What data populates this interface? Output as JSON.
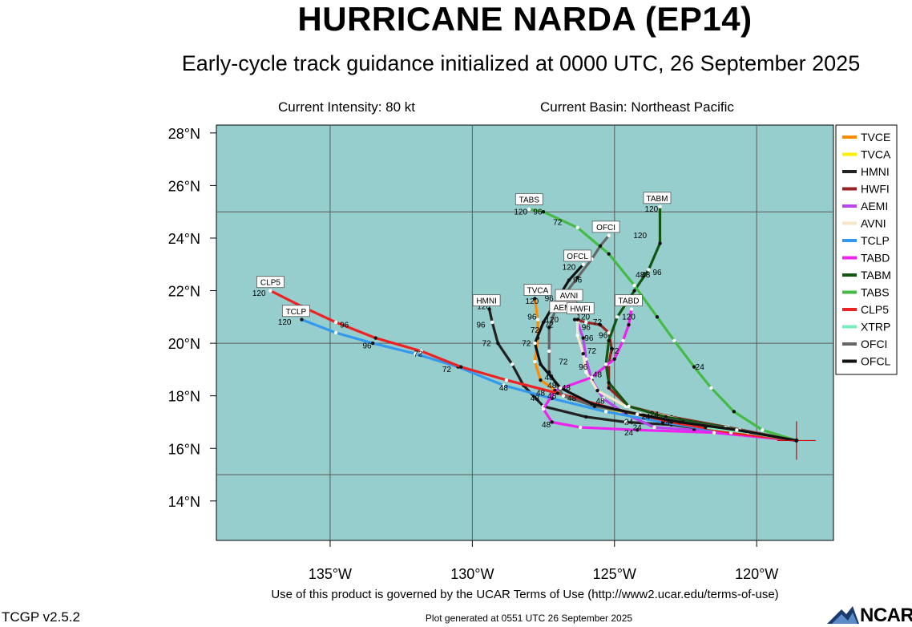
{
  "title": "HURRICANE NARDA (EP14)",
  "subtitle": "Early-cycle track guidance initialized at 0000 UTC, 26 September 2025",
  "current_intensity": "Current Intensity: 80 kt",
  "current_basin": "Current Basin: Northeast Pacific",
  "footer": {
    "terms": "Use of this product is governed by the UCAR Terms of Use (http://www2.ucar.edu/terms-of-use)",
    "version": "TCGP v2.5.2",
    "generated": "Plot generated at 0551 UTC   26 September 2025",
    "logo": "NCAR"
  },
  "colors": {
    "ocean": "#96CDCD",
    "grid": "#5a5a5a",
    "marker": "#cc0000"
  },
  "axes": {
    "lon_range": [
      -139,
      -117.3
    ],
    "lat_range": [
      12.5,
      28.3
    ],
    "lon_ticks": [
      {
        "value": -135,
        "label": "135°W"
      },
      {
        "value": -130,
        "label": "130°W"
      },
      {
        "value": -125,
        "label": "125°W"
      },
      {
        "value": -120,
        "label": "120°W"
      }
    ],
    "lat_ticks": [
      {
        "value": 14,
        "label": "14°N"
      },
      {
        "value": 16,
        "label": "16°N"
      },
      {
        "value": 18,
        "label": "18°N"
      },
      {
        "value": 20,
        "label": "20°N"
      },
      {
        "value": 22,
        "label": "22°N"
      },
      {
        "value": 24,
        "label": "24°N"
      },
      {
        "value": 26,
        "label": "26°N"
      },
      {
        "value": 28,
        "label": "28°N"
      }
    ],
    "grid_lons": [
      -135,
      -130,
      -125,
      -120
    ],
    "grid_lats": [
      15,
      20,
      25
    ]
  },
  "storm_position": [
    -118.6,
    16.3
  ],
  "chart_data": {
    "type": "line",
    "legend_position": "right",
    "series": [
      {
        "name": "TVCE",
        "color": "#FF8C00",
        "points": [
          [
            -118.6,
            16.3
          ],
          [
            -120.5,
            16.6
          ],
          [
            -122.5,
            17.0
          ],
          [
            -124.1,
            17.3
          ],
          [
            -125.5,
            17.6
          ],
          [
            -126.8,
            18.0
          ],
          [
            -127.6,
            18.6
          ],
          [
            -127.8,
            19.3
          ],
          [
            -127.7,
            20.2
          ],
          [
            -127.7,
            20.9
          ],
          [
            -127.8,
            21.7
          ]
        ]
      },
      {
        "name": "TVCA",
        "color": "#FFEE00",
        "points": [
          [
            -118.6,
            16.3
          ],
          [
            -120.6,
            16.6
          ],
          [
            -122.6,
            17.0
          ],
          [
            -124.3,
            17.3
          ],
          [
            -125.7,
            17.6
          ]
        ]
      },
      {
        "name": "HMNI",
        "color": "#222222",
        "points": [
          [
            -118.6,
            16.3
          ],
          [
            -121.0,
            16.6
          ],
          [
            -123.0,
            16.9
          ],
          [
            -124.6,
            17.0
          ],
          [
            -126.0,
            17.2
          ],
          [
            -127.5,
            17.6
          ],
          [
            -128.2,
            18.4
          ],
          [
            -128.6,
            19.2
          ],
          [
            -129.1,
            20.0
          ],
          [
            -129.3,
            20.8
          ],
          [
            -129.4,
            21.3
          ]
        ]
      },
      {
        "name": "HWFI",
        "color": "#992222",
        "points": [
          [
            -118.6,
            16.3
          ],
          [
            -121.0,
            16.8
          ],
          [
            -123.0,
            17.2
          ],
          [
            -124.5,
            17.6
          ],
          [
            -125.2,
            18.3
          ],
          [
            -125.2,
            19.2
          ],
          [
            -125.1,
            19.8
          ],
          [
            -125.2,
            20.4
          ],
          [
            -125.5,
            20.7
          ],
          [
            -126.0,
            20.8
          ],
          [
            -126.4,
            20.9
          ]
        ]
      },
      {
        "name": "AEMI",
        "color": "#BB44EE",
        "points": [
          [
            -118.6,
            16.3
          ],
          [
            -120.5,
            16.5
          ],
          [
            -122.2,
            16.7
          ],
          [
            -123.6,
            16.8
          ],
          [
            -124.6,
            17.3
          ],
          [
            -125.4,
            17.9
          ],
          [
            -125.8,
            18.6
          ],
          [
            -126.0,
            19.4
          ],
          [
            -126.1,
            20.2
          ],
          [
            -126.3,
            20.8
          ]
        ]
      },
      {
        "name": "AVNI",
        "color": "#F5E6C8",
        "points": [
          [
            -118.6,
            16.3
          ],
          [
            -120.7,
            16.7
          ],
          [
            -122.7,
            17.1
          ],
          [
            -124.6,
            17.6
          ],
          [
            -125.6,
            18.2
          ],
          [
            -126.0,
            18.9
          ],
          [
            -126.1,
            19.6
          ],
          [
            -126.3,
            20.3
          ],
          [
            -126.3,
            20.9
          ]
        ]
      },
      {
        "name": "TCLP",
        "color": "#3399EE",
        "points": [
          [
            -118.6,
            16.3
          ],
          [
            -121.0,
            16.6
          ],
          [
            -123.3,
            17.0
          ],
          [
            -125.3,
            17.4
          ],
          [
            -127.2,
            17.9
          ],
          [
            -128.9,
            18.4
          ],
          [
            -130.5,
            19.1
          ],
          [
            -132.0,
            19.6
          ],
          [
            -133.5,
            20.0
          ],
          [
            -134.8,
            20.4
          ],
          [
            -136.0,
            20.9
          ]
        ]
      },
      {
        "name": "TABD",
        "color": "#EE22EE",
        "points": [
          [
            -118.6,
            16.3
          ],
          [
            -121.5,
            16.6
          ],
          [
            -124.2,
            16.7
          ],
          [
            -126.2,
            16.8
          ],
          [
            -127.2,
            17.0
          ],
          [
            -127.5,
            17.5
          ],
          [
            -127.1,
            18.2
          ],
          [
            -125.8,
            18.7
          ],
          [
            -125.0,
            19.4
          ],
          [
            -124.7,
            20.1
          ],
          [
            -124.5,
            20.7
          ],
          [
            -124.4,
            21.3
          ]
        ]
      },
      {
        "name": "TABM",
        "color": "#115511",
        "points": [
          [
            -118.6,
            16.3
          ],
          [
            -121.1,
            16.8
          ],
          [
            -123.2,
            17.2
          ],
          [
            -124.5,
            17.6
          ],
          [
            -125.2,
            18.5
          ],
          [
            -125.3,
            19.2
          ],
          [
            -125.2,
            20.1
          ],
          [
            -124.9,
            21.0
          ],
          [
            -124.3,
            22.0
          ],
          [
            -123.8,
            22.8
          ],
          [
            -123.4,
            23.8
          ],
          [
            -123.4,
            25.2
          ]
        ]
      },
      {
        "name": "TABS",
        "color": "#44BB44",
        "points": [
          [
            -118.6,
            16.3
          ],
          [
            -119.8,
            16.7
          ],
          [
            -120.8,
            17.4
          ],
          [
            -121.6,
            18.3
          ],
          [
            -122.2,
            19.1
          ],
          [
            -122.9,
            20.1
          ],
          [
            -123.5,
            21.0
          ],
          [
            -124.3,
            22.2
          ],
          [
            -125.2,
            23.4
          ],
          [
            -126.3,
            24.4
          ],
          [
            -127.5,
            25.0
          ],
          [
            -128.0,
            25.1
          ]
        ]
      },
      {
        "name": "CLP5",
        "color": "#EE2222",
        "points": [
          [
            -118.6,
            16.3
          ],
          [
            -120.9,
            16.6
          ],
          [
            -123.0,
            17.0
          ],
          [
            -125.0,
            17.5
          ],
          [
            -127.0,
            18.1
          ],
          [
            -128.8,
            18.6
          ],
          [
            -130.4,
            19.1
          ],
          [
            -131.8,
            19.7
          ],
          [
            -133.4,
            20.2
          ],
          [
            -134.8,
            20.8
          ],
          [
            -136.0,
            21.4
          ],
          [
            -137.1,
            22.0
          ]
        ]
      },
      {
        "name": "XTRP",
        "color": "#77EEBB",
        "points": [
          [
            -118.6,
            16.3
          ],
          [
            -120.3,
            16.6
          ],
          [
            -121.8,
            16.8
          ]
        ]
      },
      {
        "name": "OFCI",
        "color": "#666666",
        "points": [
          [
            -118.6,
            16.3
          ],
          [
            -120.6,
            16.7
          ],
          [
            -122.6,
            17.0
          ],
          [
            -124.1,
            17.3
          ],
          [
            -125.7,
            17.6
          ],
          [
            -126.8,
            18.0
          ],
          [
            -127.3,
            18.9
          ],
          [
            -127.3,
            19.7
          ],
          [
            -127.3,
            20.6
          ],
          [
            -127.0,
            21.5
          ],
          [
            -126.3,
            22.5
          ],
          [
            -125.8,
            23.2
          ],
          [
            -125.5,
            23.7
          ],
          [
            -125.2,
            24.1
          ]
        ]
      },
      {
        "name": "OFCL",
        "color": "#111111",
        "points": [
          [
            -118.6,
            16.3
          ],
          [
            -120.7,
            16.7
          ],
          [
            -122.7,
            17.0
          ],
          [
            -124.2,
            17.3
          ],
          [
            -125.8,
            17.7
          ],
          [
            -126.9,
            18.3
          ],
          [
            -127.6,
            19.2
          ],
          [
            -127.8,
            20.0
          ],
          [
            -127.5,
            20.8
          ],
          [
            -127.0,
            21.7
          ],
          [
            -126.6,
            22.4
          ],
          [
            -126.1,
            23.0
          ]
        ]
      }
    ],
    "forecast_hour_labels": [
      {
        "text": "24",
        "lon": -122.0,
        "lat": 19.0
      },
      {
        "text": "48",
        "lon": -123.9,
        "lat": 22.5
      },
      {
        "text": "72",
        "lon": -127.0,
        "lat": 24.5
      },
      {
        "text": "96",
        "lon": -127.7,
        "lat": 24.9
      },
      {
        "text": "120",
        "lon": -128.3,
        "lat": 24.9
      },
      {
        "text": "120",
        "lon": -124.1,
        "lat": 24.0
      },
      {
        "text": "96",
        "lon": -126.3,
        "lat": 22.3
      },
      {
        "text": "120",
        "lon": -126.6,
        "lat": 22.8
      },
      {
        "text": "96",
        "lon": -123.5,
        "lat": 22.6
      },
      {
        "text": "48",
        "lon": -124.1,
        "lat": 22.5
      },
      {
        "text": "120",
        "lon": -123.7,
        "lat": 25.0
      },
      {
        "text": "120",
        "lon": -127.9,
        "lat": 21.5
      },
      {
        "text": "96",
        "lon": -127.3,
        "lat": 21.6
      },
      {
        "text": "96",
        "lon": -127.9,
        "lat": 20.9
      },
      {
        "text": "72",
        "lon": -127.8,
        "lat": 20.4
      },
      {
        "text": "72",
        "lon": -128.1,
        "lat": 19.9
      },
      {
        "text": "72",
        "lon": -127.3,
        "lat": 20.6
      },
      {
        "text": "120",
        "lon": -127.2,
        "lat": 20.8
      },
      {
        "text": "120",
        "lon": -129.6,
        "lat": 21.3
      },
      {
        "text": "96",
        "lon": -129.7,
        "lat": 20.6
      },
      {
        "text": "72",
        "lon": -129.5,
        "lat": 19.9
      },
      {
        "text": "120",
        "lon": -126.1,
        "lat": 20.9
      },
      {
        "text": "96",
        "lon": -126.0,
        "lat": 20.5
      },
      {
        "text": "96",
        "lon": -125.4,
        "lat": 20.2
      },
      {
        "text": "96",
        "lon": -125.9,
        "lat": 20.1
      },
      {
        "text": "72",
        "lon": -125.8,
        "lat": 19.6
      },
      {
        "text": "72",
        "lon": -125.6,
        "lat": 20.7
      },
      {
        "text": "72",
        "lon": -125.0,
        "lat": 19.6
      },
      {
        "text": "120",
        "lon": -124.5,
        "lat": 20.9
      },
      {
        "text": "96",
        "lon": -126.1,
        "lat": 19.0
      },
      {
        "text": "48",
        "lon": -125.6,
        "lat": 18.7
      },
      {
        "text": "72",
        "lon": -126.8,
        "lat": 19.2
      },
      {
        "text": "48",
        "lon": -126.7,
        "lat": 18.2
      },
      {
        "text": "48",
        "lon": -127.3,
        "lat": 18.6
      },
      {
        "text": "48",
        "lon": -127.2,
        "lat": 18.3
      },
      {
        "text": "48",
        "lon": -127.6,
        "lat": 18.0
      },
      {
        "text": "48",
        "lon": -127.2,
        "lat": 17.9
      },
      {
        "text": "48",
        "lon": -126.5,
        "lat": 17.8
      },
      {
        "text": "48",
        "lon": -125.5,
        "lat": 17.7
      },
      {
        "text": "48",
        "lon": -128.9,
        "lat": 18.2
      },
      {
        "text": "48",
        "lon": -127.8,
        "lat": 17.8
      },
      {
        "text": "48",
        "lon": -127.4,
        "lat": 16.8
      },
      {
        "text": "24",
        "lon": -124.5,
        "lat": 16.9
      },
      {
        "text": "24",
        "lon": -124.5,
        "lat": 16.5
      },
      {
        "text": "24",
        "lon": -124.2,
        "lat": 16.7
      },
      {
        "text": "24",
        "lon": -123.2,
        "lat": 16.9
      },
      {
        "text": "24",
        "lon": -123.6,
        "lat": 17.2
      },
      {
        "text": "24",
        "lon": -123.9,
        "lat": 17.1
      },
      {
        "text": "72",
        "lon": -131.9,
        "lat": 19.5
      },
      {
        "text": "72",
        "lon": -130.9,
        "lat": 18.9
      },
      {
        "text": "96",
        "lon": -133.7,
        "lat": 19.8
      },
      {
        "text": "96",
        "lon": -134.5,
        "lat": 20.6
      },
      {
        "text": "120",
        "lon": -137.5,
        "lat": 21.8
      },
      {
        "text": "120",
        "lon": -136.6,
        "lat": 20.7
      }
    ],
    "model_boxes": [
      {
        "text": "TABS",
        "lon": -128.0,
        "lat": 25.45
      },
      {
        "text": "TABM",
        "lon": -123.5,
        "lat": 25.5
      },
      {
        "text": "OFCI",
        "lon": -125.3,
        "lat": 24.4
      },
      {
        "text": "OFCL",
        "lon": -126.3,
        "lat": 23.3
      },
      {
        "text": "CLP5",
        "lon": -137.1,
        "lat": 22.3
      },
      {
        "text": "TCLP",
        "lon": -136.2,
        "lat": 21.2
      },
      {
        "text": "TVCA",
        "lon": -127.7,
        "lat": 22.0
      },
      {
        "text": "HMNI",
        "lon": -129.5,
        "lat": 21.6
      },
      {
        "text": "AVNI",
        "lon": -126.6,
        "lat": 21.8
      },
      {
        "text": "AEMI",
        "lon": -126.8,
        "lat": 21.35
      },
      {
        "text": "HWFI",
        "lon": -126.2,
        "lat": 21.3
      },
      {
        "text": "TABD",
        "lon": -124.5,
        "lat": 21.6
      }
    ]
  }
}
